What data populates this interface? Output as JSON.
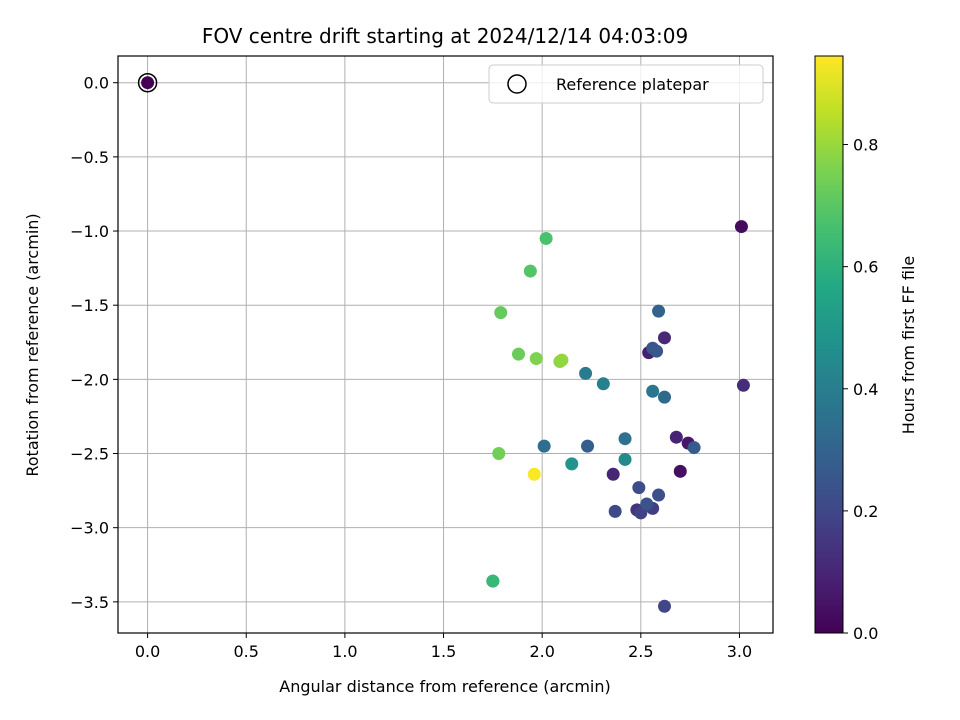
{
  "chart_data": {
    "type": "scatter",
    "title": "FOV centre drift starting at 2024/12/14 04:03:09",
    "xlabel": "Angular distance from reference (arcmin)",
    "ylabel": "Rotation from reference (arcmin)",
    "xlim": [
      -0.15,
      3.17
    ],
    "ylim": [
      -3.71,
      0.18
    ],
    "xticks": [
      0.0,
      0.5,
      1.0,
      1.5,
      2.0,
      2.5,
      3.0
    ],
    "yticks": [
      0.0,
      -0.5,
      -1.0,
      -1.5,
      -2.0,
      -2.5,
      -3.0,
      -3.5
    ],
    "xtick_labels": [
      "0.0",
      "0.5",
      "1.0",
      "1.5",
      "2.0",
      "2.5",
      "3.0"
    ],
    "ytick_labels": [
      "0.0",
      "−0.5",
      "−1.0",
      "−1.5",
      "−2.0",
      "−2.5",
      "−3.0",
      "−3.5"
    ],
    "grid": true,
    "legend": {
      "label": "Reference platepar",
      "placement": "top-right"
    },
    "reference_point": {
      "x": 0.0,
      "y": 0.0
    },
    "colorbar": {
      "label": "Hours from first FF file",
      "range": [
        0.0,
        0.945
      ],
      "ticks": [
        0.0,
        0.2,
        0.4,
        0.6,
        0.8
      ],
      "tick_labels": [
        "0.0",
        "0.2",
        "0.4",
        "0.6",
        "0.8"
      ],
      "colormap": "viridis"
    },
    "points": [
      {
        "x": 0.0,
        "y": 0.0,
        "c": 0.0
      },
      {
        "x": 3.01,
        "y": -0.97,
        "c": 0.03
      },
      {
        "x": 2.7,
        "y": -2.62,
        "c": 0.04
      },
      {
        "x": 2.74,
        "y": -2.43,
        "c": 0.06
      },
      {
        "x": 2.54,
        "y": -1.82,
        "c": 0.08
      },
      {
        "x": 2.68,
        "y": -2.39,
        "c": 0.09
      },
      {
        "x": 2.36,
        "y": -2.64,
        "c": 0.1
      },
      {
        "x": 2.62,
        "y": -1.72,
        "c": 0.11
      },
      {
        "x": 3.02,
        "y": -2.04,
        "c": 0.12
      },
      {
        "x": 2.48,
        "y": -2.88,
        "c": 0.14
      },
      {
        "x": 2.56,
        "y": -2.87,
        "c": 0.17
      },
      {
        "x": 2.5,
        "y": -2.9,
        "c": 0.18
      },
      {
        "x": 2.62,
        "y": -3.53,
        "c": 0.2
      },
      {
        "x": 2.37,
        "y": -2.89,
        "c": 0.21
      },
      {
        "x": 2.49,
        "y": -2.73,
        "c": 0.22
      },
      {
        "x": 2.59,
        "y": -2.78,
        "c": 0.23
      },
      {
        "x": 2.53,
        "y": -2.84,
        "c": 0.24
      },
      {
        "x": 2.56,
        "y": -1.79,
        "c": 0.25
      },
      {
        "x": 2.58,
        "y": -1.81,
        "c": 0.26
      },
      {
        "x": 2.77,
        "y": -2.46,
        "c": 0.27
      },
      {
        "x": 2.23,
        "y": -2.45,
        "c": 0.28
      },
      {
        "x": 2.59,
        "y": -1.54,
        "c": 0.3
      },
      {
        "x": 2.62,
        "y": -2.12,
        "c": 0.32
      },
      {
        "x": 2.01,
        "y": -2.45,
        "c": 0.34
      },
      {
        "x": 2.42,
        "y": -2.4,
        "c": 0.35
      },
      {
        "x": 2.56,
        "y": -2.08,
        "c": 0.37
      },
      {
        "x": 2.22,
        "y": -1.96,
        "c": 0.39
      },
      {
        "x": 2.31,
        "y": -2.03,
        "c": 0.41
      },
      {
        "x": 2.42,
        "y": -2.54,
        "c": 0.45
      },
      {
        "x": 2.15,
        "y": -2.57,
        "c": 0.49
      },
      {
        "x": 1.75,
        "y": -3.36,
        "c": 0.62
      },
      {
        "x": 1.75,
        "y": -3.36,
        "c": 0.63
      },
      {
        "x": 2.02,
        "y": -1.05,
        "c": 0.67
      },
      {
        "x": 1.94,
        "y": -1.27,
        "c": 0.69
      },
      {
        "x": 1.79,
        "y": -1.55,
        "c": 0.72
      },
      {
        "x": 1.88,
        "y": -1.83,
        "c": 0.73
      },
      {
        "x": 1.78,
        "y": -2.5,
        "c": 0.74
      },
      {
        "x": 1.97,
        "y": -1.86,
        "c": 0.76
      },
      {
        "x": 2.09,
        "y": -1.88,
        "c": 0.78
      },
      {
        "x": 2.1,
        "y": -1.87,
        "c": 0.79
      },
      {
        "x": 1.96,
        "y": -2.64,
        "c": 0.94
      }
    ]
  }
}
